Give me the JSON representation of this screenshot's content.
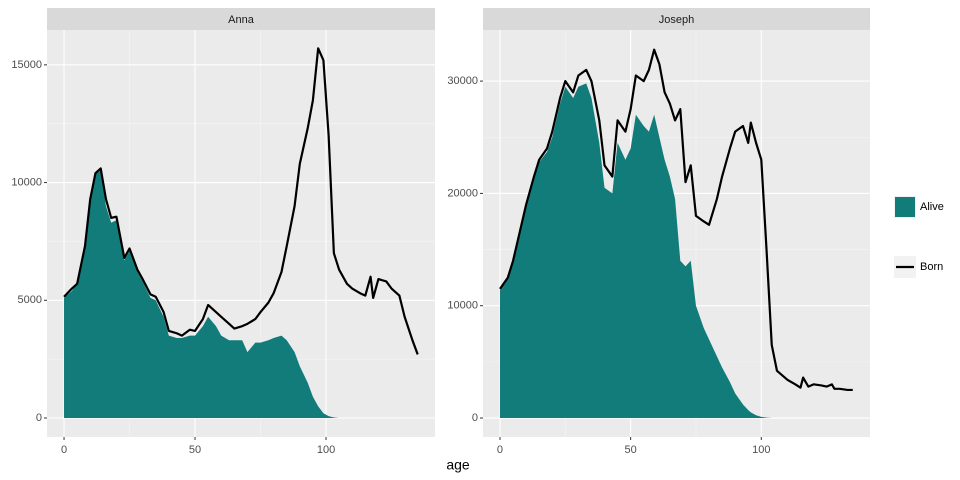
{
  "xlabel": "age",
  "legend_position": "right",
  "chart_data": [
    {
      "type": "area",
      "title": "Anna",
      "x": [
        0,
        3,
        5,
        8,
        10,
        12,
        14,
        16,
        18,
        20,
        23,
        25,
        28,
        30,
        33,
        35,
        38,
        40,
        43,
        45,
        48,
        50,
        53,
        55,
        58,
        60,
        63,
        65,
        68,
        70,
        73,
        75,
        78,
        80,
        83,
        85,
        88,
        90,
        93,
        95,
        97,
        99,
        101,
        103,
        105,
        108,
        110,
        113,
        115,
        117,
        118,
        120,
        123,
        125,
        128,
        130,
        133,
        135
      ],
      "series": [
        {
          "name": "Alive",
          "type": "area",
          "color": "#127c7a",
          "values": [
            5100,
            5400,
            5700,
            7200,
            9200,
            10400,
            10500,
            9000,
            8300,
            8400,
            6700,
            7100,
            6200,
            5800,
            5100,
            5000,
            4300,
            3500,
            3400,
            3400,
            3500,
            3500,
            3900,
            4300,
            3900,
            3500,
            3300,
            3300,
            3300,
            2800,
            3200,
            3200,
            3300,
            3400,
            3500,
            3300,
            2800,
            2200,
            1500,
            900,
            500,
            200,
            80,
            20,
            0,
            null,
            null,
            null,
            null,
            null,
            null,
            null,
            null,
            null,
            null,
            null,
            null,
            null
          ]
        },
        {
          "name": "Born",
          "type": "line",
          "color": "#000000",
          "values": [
            5150,
            5500,
            5700,
            7300,
            9300,
            10400,
            10600,
            9300,
            8500,
            8550,
            6800,
            7200,
            6300,
            5900,
            5250,
            5150,
            4500,
            3700,
            3600,
            3500,
            3750,
            3700,
            4200,
            4800,
            4500,
            4300,
            4000,
            3800,
            3900,
            4000,
            4200,
            4500,
            4900,
            5300,
            6200,
            7300,
            9000,
            10800,
            12300,
            13500,
            15700,
            15200,
            12000,
            7000,
            6300,
            5700,
            5500,
            5300,
            5200,
            6000,
            5100,
            5900,
            5800,
            5500,
            5200,
            4300,
            3300,
            2700
          ]
        }
      ],
      "xlim": [
        -6.5,
        141.6
      ],
      "xticks": [
        0,
        50,
        100
      ],
      "ylim": [
        -807,
        16480
      ],
      "yticks": [
        0,
        5000,
        10000,
        15000
      ],
      "grid": true
    },
    {
      "type": "area",
      "title": "Joseph",
      "x": [
        0,
        3,
        5,
        8,
        10,
        13,
        15,
        18,
        20,
        23,
        25,
        28,
        30,
        33,
        35,
        38,
        40,
        43,
        45,
        48,
        50,
        52,
        55,
        57,
        59,
        61,
        63,
        65,
        67,
        69,
        71,
        73,
        75,
        78,
        80,
        83,
        85,
        88,
        90,
        93,
        95,
        96,
        98,
        100,
        102,
        104,
        106,
        110,
        113,
        115,
        116,
        118,
        120,
        123,
        125,
        127,
        128,
        130,
        133,
        135
      ],
      "series": [
        {
          "name": "Alive",
          "type": "area",
          "color": "#127c7a",
          "values": [
            11400,
            12400,
            13900,
            16900,
            18800,
            21300,
            22800,
            23700,
            25000,
            28000,
            29500,
            28500,
            29500,
            29800,
            28500,
            24500,
            20500,
            20000,
            24500,
            23000,
            24000,
            27000,
            26000,
            25500,
            27000,
            25000,
            23000,
            21500,
            19500,
            14000,
            13500,
            14000,
            10000,
            8000,
            7000,
            5500,
            4500,
            3200,
            2200,
            1200,
            700,
            500,
            250,
            100,
            30,
            0,
            null,
            null,
            null,
            null,
            null,
            null,
            null,
            null,
            null,
            null,
            null,
            null,
            null,
            null
          ]
        },
        {
          "name": "Born",
          "type": "line",
          "color": "#000000",
          "values": [
            11500,
            12500,
            14000,
            17000,
            19000,
            21500,
            23000,
            24000,
            25500,
            28500,
            30000,
            29000,
            30500,
            31000,
            30000,
            26500,
            22500,
            21500,
            26500,
            25500,
            27500,
            30500,
            30000,
            31000,
            32800,
            31500,
            29000,
            28000,
            26500,
            27500,
            21000,
            22500,
            18000,
            17500,
            17200,
            19500,
            21500,
            24000,
            25500,
            26000,
            24500,
            26300,
            24500,
            23000,
            15000,
            6500,
            4200,
            3400,
            3000,
            2700,
            3600,
            2800,
            3000,
            2900,
            2800,
            3000,
            2600,
            2600,
            2500,
            2500
          ]
        }
      ],
      "xlim": [
        -6.5,
        141.6
      ],
      "xticks": [
        0,
        50,
        100
      ],
      "ylim": [
        -1690,
        34550
      ],
      "yticks": [
        0,
        10000,
        20000,
        30000
      ],
      "grid": true
    }
  ]
}
